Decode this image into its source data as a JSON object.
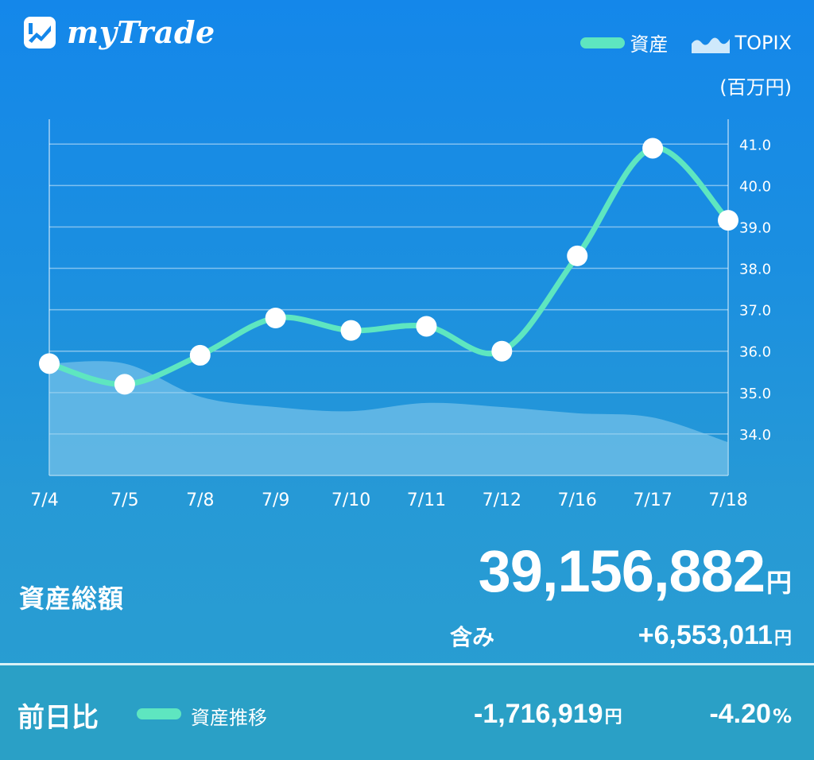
{
  "header": {
    "app_title": "myTrade"
  },
  "legend": {
    "asset": "資産",
    "topix": "TOPIX",
    "asset_icon": "line-swatch-icon",
    "topix_icon": "area-swatch-icon"
  },
  "unit_label": "(百万円)",
  "colors": {
    "asset_line": "#5ee6c0",
    "topix_area": "#8fd0ee",
    "background_top": "#1487ea",
    "background_bottom": "#2a9fcf"
  },
  "chart_data": {
    "type": "line",
    "categories": [
      "7/4",
      "7/5",
      "7/8",
      "7/9",
      "7/10",
      "7/11",
      "7/12",
      "7/16",
      "7/17",
      "7/18"
    ],
    "series": [
      {
        "name": "資産",
        "values": [
          35.7,
          35.2,
          35.9,
          36.8,
          36.5,
          36.6,
          36.0,
          38.3,
          40.9,
          39.16
        ]
      },
      {
        "name": "TOPIX",
        "values": [
          35.7,
          35.7,
          34.9,
          34.65,
          34.55,
          34.75,
          34.65,
          34.5,
          34.4,
          33.8
        ]
      }
    ],
    "y_ticks": [
      "34.0",
      "35.0",
      "36.0",
      "37.0",
      "38.0",
      "39.0",
      "40.0",
      "41.0"
    ],
    "ylim": [
      33.0,
      41.6
    ],
    "grid": true,
    "legend_position": "top-right",
    "y_axis_side": "right"
  },
  "summary": {
    "total_label": "資産総額",
    "total_value": "39,156,882",
    "total_unit": "円",
    "included_label": "含み",
    "included_value": "+6,553,011",
    "included_unit": "円"
  },
  "day_over_day": {
    "label": "前日比",
    "series_label": "資産推移",
    "change": "-1,716,919",
    "change_unit": "円",
    "percent": "-4.20",
    "percent_unit": "%"
  }
}
